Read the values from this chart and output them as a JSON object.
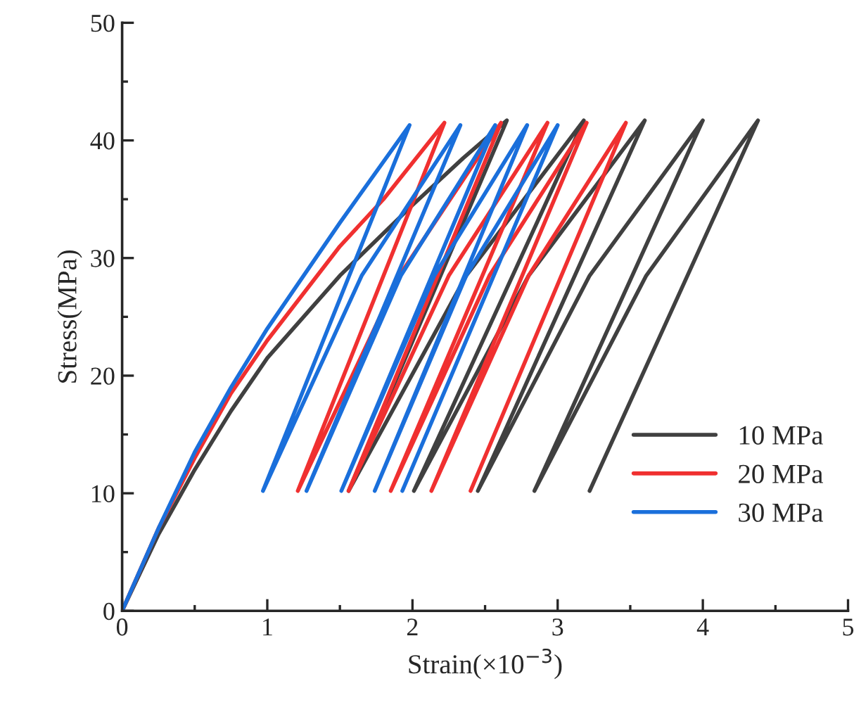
{
  "chart_data": {
    "type": "line",
    "xlabel": "Strain(×10$^{−3}$)",
    "ylabel": "Stress(MPa)",
    "xlim": [
      0,
      5
    ],
    "ylim": [
      0,
      50
    ],
    "xticks": [
      0,
      1,
      2,
      3,
      4,
      5
    ],
    "yticks": [
      0,
      10,
      20,
      30,
      40,
      50
    ],
    "grid": false,
    "legend": "bottom right",
    "marker": "none",
    "line_style": "solid",
    "series": [
      {
        "name": "10 MPa",
        "color": "#404040",
        "x": [
          0,
          0.25,
          0.5,
          0.75,
          1,
          1.5,
          2,
          2.35,
          2.65,
          1.56,
          2.37,
          3.18,
          2.01,
          2.8,
          3.6,
          2.45,
          3.22,
          4.0,
          2.84,
          3.61,
          4.38,
          3.22
        ],
        "values": [
          0,
          6.5,
          12,
          17,
          21.5,
          28.5,
          34.5,
          38.5,
          41.7,
          10.2,
          28.5,
          41.7,
          10.2,
          28.5,
          41.7,
          10.2,
          28.5,
          41.7,
          10.2,
          28.5,
          41.7,
          10.2
        ]
      },
      {
        "name": "20 MPa",
        "color": "#f03030",
        "x": [
          0,
          0.25,
          0.5,
          0.75,
          1,
          1.5,
          1.8,
          2.22,
          1.21,
          1.91,
          2.61,
          1.56,
          2.25,
          2.93,
          1.85,
          2.53,
          3.2,
          2.13,
          2.8,
          3.47,
          2.4
        ],
        "values": [
          0,
          7,
          13,
          18.5,
          23,
          31,
          35,
          41.5,
          10.2,
          28.5,
          41.5,
          10.2,
          28.5,
          41.5,
          10.2,
          28.5,
          41.5,
          10.2,
          28.5,
          41.5,
          10.2
        ]
      },
      {
        "name": "30 MPa",
        "color": "#1a6fdb",
        "x": [
          0,
          0.25,
          0.5,
          0.75,
          1,
          1.5,
          1.98,
          0.97,
          1.65,
          2.33,
          1.27,
          1.92,
          2.57,
          1.51,
          2.15,
          2.79,
          1.74,
          2.37,
          3.0,
          1.93
        ],
        "values": [
          0,
          7,
          13.5,
          19,
          24,
          33,
          41.3,
          10.2,
          28.5,
          41.3,
          10.2,
          28.5,
          41.3,
          10.2,
          28.5,
          41.3,
          10.2,
          28.5,
          41.3,
          10.2
        ]
      }
    ]
  }
}
